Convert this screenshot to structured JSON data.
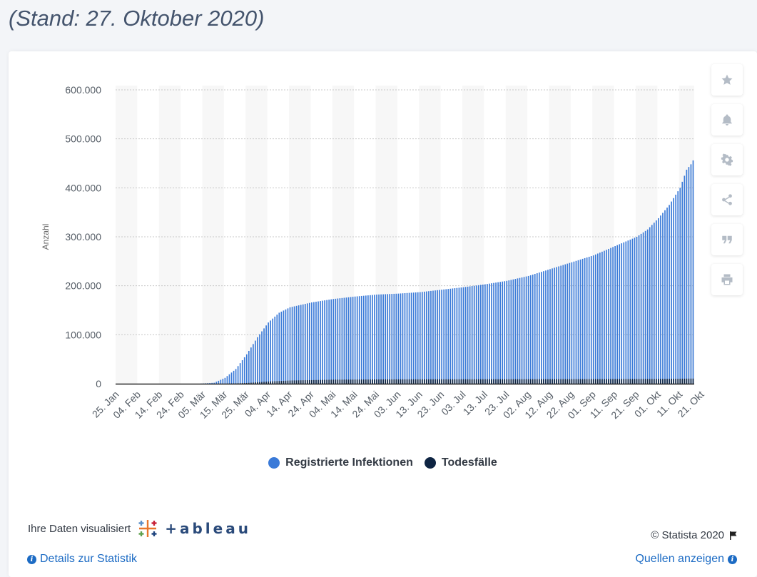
{
  "subtitle": "(Stand: 27. Oktober 2020)",
  "side_buttons": [
    "star-icon",
    "bell-icon",
    "gear-icon",
    "share-icon",
    "quote-icon",
    "print-icon"
  ],
  "chart_data": {
    "type": "bar",
    "title": "",
    "xlabel": "",
    "ylabel": "Anzahl",
    "ylim": [
      0,
      600000
    ],
    "y_ticks": [
      0,
      100000,
      200000,
      300000,
      400000,
      500000,
      600000
    ],
    "y_tick_labels": [
      "0",
      "100.000",
      "200.000",
      "300.000",
      "400.000",
      "500.000",
      "600.000"
    ],
    "x_tick_labels": [
      "25. Jan",
      "04. Feb",
      "14. Feb",
      "24. Feb",
      "05. Mär",
      "15. Mär",
      "25. Mär",
      "04. Apr",
      "14. Apr",
      "24. Apr",
      "04. Mai",
      "14. Mai",
      "24. Mai",
      "03. Jun",
      "13. Jun",
      "23. Jun",
      "03. Jul",
      "13. Jul",
      "23. Jul",
      "02. Aug",
      "12. Aug",
      "22. Aug",
      "01. Sep",
      "11. Sep",
      "21. Sep",
      "01. Okt",
      "11. Okt",
      "21. Okt"
    ],
    "grid": true,
    "colors": {
      "infektionen": "#3a7ad8",
      "todesfaelle": "#0e2442",
      "band": "#f7f7f7",
      "grid": "#c8c8c8"
    },
    "series": [
      {
        "name": "Registrierte Infektionen",
        "anchors": [
          [
            0,
            0
          ],
          [
            38,
            0
          ],
          [
            45,
            2000
          ],
          [
            50,
            12000
          ],
          [
            55,
            30000
          ],
          [
            60,
            60000
          ],
          [
            65,
            95000
          ],
          [
            70,
            125000
          ],
          [
            75,
            145000
          ],
          [
            80,
            156000
          ],
          [
            90,
            166000
          ],
          [
            100,
            173000
          ],
          [
            110,
            178000
          ],
          [
            120,
            182000
          ],
          [
            130,
            184000
          ],
          [
            140,
            187000
          ],
          [
            150,
            192000
          ],
          [
            160,
            197000
          ],
          [
            170,
            203000
          ],
          [
            180,
            210000
          ],
          [
            190,
            220000
          ],
          [
            200,
            234000
          ],
          [
            210,
            248000
          ],
          [
            220,
            262000
          ],
          [
            230,
            281000
          ],
          [
            240,
            300000
          ],
          [
            245,
            315000
          ],
          [
            250,
            338000
          ],
          [
            255,
            365000
          ],
          [
            260,
            400000
          ],
          [
            263,
            437000
          ],
          [
            265,
            448000
          ],
          [
            266,
            456000
          ]
        ]
      },
      {
        "name": "Todesfälle",
        "anchors": [
          [
            0,
            0
          ],
          [
            50,
            0
          ],
          [
            60,
            1500
          ],
          [
            70,
            4500
          ],
          [
            80,
            6500
          ],
          [
            100,
            8300
          ],
          [
            130,
            9000
          ],
          [
            170,
            9200
          ],
          [
            220,
            9500
          ],
          [
            250,
            9800
          ],
          [
            266,
            10500
          ]
        ]
      }
    ],
    "legend": [
      {
        "label": "Registrierte Infektionen",
        "color": "#3a7ad8"
      },
      {
        "label": "Todesfälle",
        "color": "#0e2442"
      }
    ]
  },
  "footer": {
    "visualized_text": "Ihre Daten visualisiert",
    "tableau_word": "+ableau",
    "copyright": "© Statista 2020",
    "details_link": "Details zur Statistik",
    "sources_link": "Quellen anzeigen"
  }
}
